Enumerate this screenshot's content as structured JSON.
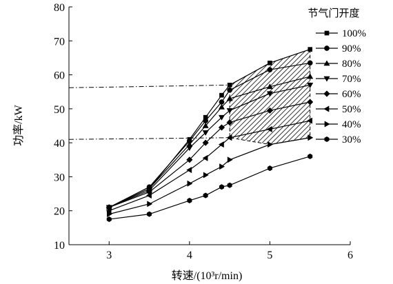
{
  "chart_data": {
    "type": "line",
    "title": "",
    "xlabel": "转速/(10³r/min)",
    "ylabel": "功率/kW",
    "xlim": [
      2.5,
      6
    ],
    "ylim": [
      10,
      80
    ],
    "xticks": [
      3,
      4,
      5,
      6
    ],
    "yticks": [
      10,
      20,
      30,
      40,
      50,
      60,
      70,
      80
    ],
    "legend_title": "节气门开度",
    "legend_position": "right",
    "series": [
      {
        "name": "100%",
        "marker": "square",
        "x": [
          3,
          3.5,
          4,
          4.2,
          4.4,
          4.5,
          5,
          5.5
        ],
        "y": [
          21,
          26.5,
          41,
          47.5,
          54,
          57,
          63.5,
          67.5
        ]
      },
      {
        "name": "90%",
        "marker": "circle",
        "x": [
          3,
          3.5,
          4,
          4.2,
          4.4,
          4.5,
          5,
          5.5
        ],
        "y": [
          21,
          27,
          40.5,
          46.5,
          52,
          55.5,
          61.5,
          63.5
        ]
      },
      {
        "name": "80%",
        "marker": "triangle-up",
        "x": [
          3,
          3.5,
          4,
          4.2,
          4.4,
          4.5,
          5,
          5.5
        ],
        "y": [
          21,
          26.5,
          39.5,
          45,
          50.5,
          53,
          56.5,
          59.5
        ]
      },
      {
        "name": "70%",
        "marker": "triangle-down",
        "x": [
          3,
          3.5,
          4,
          4.2,
          4.4,
          4.5,
          5,
          5.5
        ],
        "y": [
          21,
          26,
          38.5,
          43,
          47.5,
          49.5,
          54.5,
          57
        ]
      },
      {
        "name": "60%",
        "marker": "diamond",
        "x": [
          3,
          3.5,
          4,
          4.2,
          4.4,
          4.5,
          5,
          5.5
        ],
        "y": [
          21,
          25.5,
          35,
          40,
          44.5,
          46,
          49.5,
          52
        ]
      },
      {
        "name": "50%",
        "marker": "triangle-left",
        "x": [
          3,
          3.5,
          4,
          4.2,
          4.4,
          4.5,
          5,
          5.5
        ],
        "y": [
          20,
          24.5,
          32,
          35.5,
          39.5,
          41.5,
          44,
          46.5
        ]
      },
      {
        "name": "40%",
        "marker": "triangle-right",
        "x": [
          3,
          3.5,
          4,
          4.2,
          4.4,
          4.5,
          5,
          5.5
        ],
        "y": [
          19,
          22,
          28,
          30.5,
          33,
          35,
          39.5,
          41.5
        ]
      },
      {
        "name": "30%",
        "marker": "hexagon",
        "x": [
          3,
          3.5,
          4,
          4.2,
          4.4,
          4.5,
          5,
          5.5
        ],
        "y": [
          17.5,
          19,
          23,
          24.5,
          27,
          27.5,
          32.5,
          36
        ]
      }
    ],
    "reference_lines": [
      {
        "style": "dash-dot",
        "x": [
          2.5,
          4.5
        ],
        "y": [
          56.2,
          57
        ]
      },
      {
        "style": "dash-dot",
        "x": [
          2.5,
          4.5
        ],
        "y": [
          41,
          41.5
        ]
      }
    ],
    "hatched_region": {
      "x": [
        4.5,
        5,
        5.5,
        5.5,
        5,
        4.5
      ],
      "y": [
        57,
        63.5,
        67.5,
        41.5,
        39.5,
        41.5
      ]
    },
    "grid": false
  }
}
